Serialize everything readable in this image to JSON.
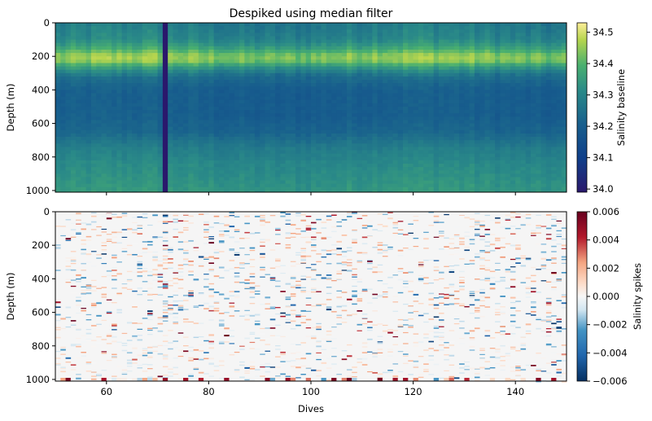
{
  "chart_data": [
    {
      "type": "heatmap",
      "title": "Despiked using median filter",
      "xlabel": "",
      "ylabel": "Depth (m)",
      "xlim": [
        50,
        150
      ],
      "ylim": [
        1010,
        0
      ],
      "y_inverted": true,
      "x_ticks": [
        60,
        80,
        100,
        120,
        140
      ],
      "x_tick_labels_shown": false,
      "y_ticks": [
        0,
        200,
        400,
        600,
        800,
        1000
      ],
      "colormap": "haline",
      "colorbar": {
        "label": "Salinity baseline",
        "vmin": 33.99,
        "vmax": 34.53,
        "ticks": [
          "34.0",
          "34.1",
          "34.2",
          "34.3",
          "34.4",
          "34.5"
        ]
      },
      "depth_profile": [
        {
          "depth": 0,
          "value": 34.27
        },
        {
          "depth": 100,
          "value": 34.3
        },
        {
          "depth": 150,
          "value": 34.36
        },
        {
          "depth": 200,
          "value": 34.45
        },
        {
          "depth": 230,
          "value": 34.43
        },
        {
          "depth": 260,
          "value": 34.35
        },
        {
          "depth": 320,
          "value": 34.24
        },
        {
          "depth": 400,
          "value": 34.2
        },
        {
          "depth": 550,
          "value": 34.2
        },
        {
          "depth": 650,
          "value": 34.22
        },
        {
          "depth": 750,
          "value": 34.28
        },
        {
          "depth": 850,
          "value": 34.31
        },
        {
          "depth": 1010,
          "value": 34.34
        }
      ],
      "missing_dive": 71,
      "missing_dive_value": 33.99
    },
    {
      "type": "heatmap",
      "title": "",
      "xlabel": "Dives",
      "ylabel": "Depth (m)",
      "xlim": [
        50,
        150
      ],
      "ylim": [
        1010,
        0
      ],
      "y_inverted": true,
      "x_ticks": [
        60,
        80,
        100,
        120,
        140
      ],
      "y_ticks": [
        0,
        200,
        400,
        600,
        800,
        1000
      ],
      "colormap": "RdBu_r",
      "colorbar": {
        "label": "Salinity spikes",
        "vmin": -0.006,
        "vmax": 0.006,
        "ticks": [
          "0.006",
          "0.004",
          "0.002",
          "0.000",
          "−0.002",
          "−0.004",
          "−0.006"
        ]
      },
      "typical_spike_range": [
        -0.006,
        0.006
      ],
      "background_value": 0.0
    }
  ]
}
